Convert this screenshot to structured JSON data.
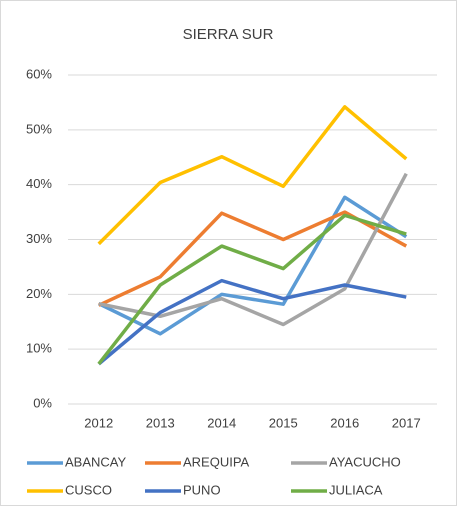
{
  "chart_data": {
    "type": "line",
    "title": "SIERRA SUR",
    "categories": [
      "2012",
      "2013",
      "2014",
      "2015",
      "2016",
      "2017"
    ],
    "series": [
      {
        "name": "ABANCAY",
        "color": "#5b9bd5",
        "values": [
          18.3,
          12.8,
          20,
          18.2,
          37.7,
          30.5
        ]
      },
      {
        "name": "AREQUIPA",
        "color": "#ed7d31",
        "values": [
          18,
          23.2,
          34.8,
          30,
          35,
          28.8
        ]
      },
      {
        "name": "AYACUCHO",
        "color": "#a5a5a5",
        "values": [
          18.3,
          16,
          19.2,
          14.5,
          21,
          42
        ]
      },
      {
        "name": "CUSCO",
        "color": "#ffc000",
        "values": [
          29.2,
          40.4,
          45.1,
          39.7,
          54.2,
          44.7
        ]
      },
      {
        "name": "PUNO",
        "color": "#4472c4",
        "values": [
          7.3,
          16.7,
          22.5,
          19.2,
          21.7,
          19.5
        ]
      },
      {
        "name": "JULIACA",
        "color": "#70ad47",
        "values": [
          7.3,
          21.7,
          28.8,
          24.7,
          34.4,
          31
        ]
      }
    ],
    "ylim": [
      0,
      60
    ],
    "yticks": [
      {
        "value": 0,
        "label": "0%"
      },
      {
        "value": 10,
        "label": "10%"
      },
      {
        "value": 20,
        "label": "20%"
      },
      {
        "value": 30,
        "label": "30%"
      },
      {
        "value": 40,
        "label": "40%"
      },
      {
        "value": 50,
        "label": "50%"
      },
      {
        "value": 60,
        "label": "60%"
      }
    ],
    "grid": true
  }
}
